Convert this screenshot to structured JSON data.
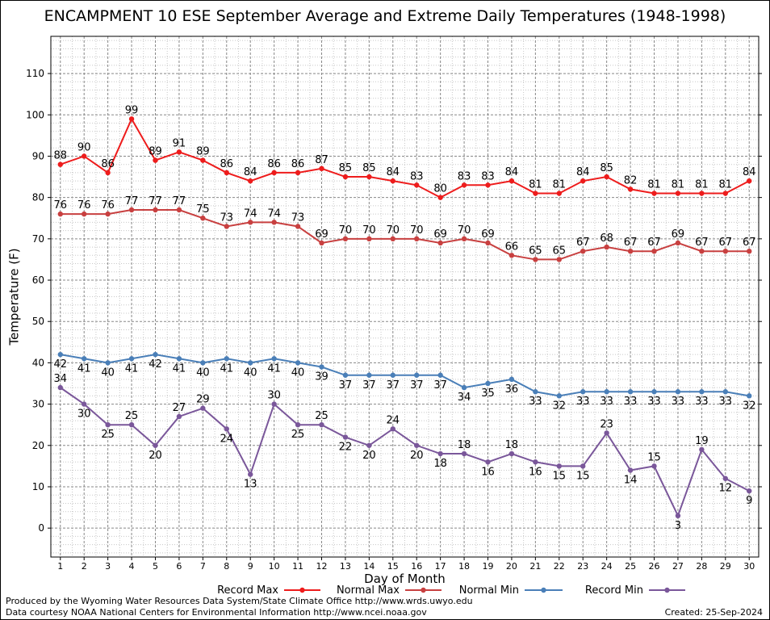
{
  "page": {
    "footer_left_1": "Produced by the Wyoming Water Resources Data System/State Climate Office http://www.wrds.uwyo.edu",
    "footer_left_2": "Data courtesy NOAA National Centers for Environmental Information http://www.ncei.noaa.gov",
    "created": "Created:  25-Sep-2024"
  },
  "chart_data": {
    "type": "line",
    "title": "ENCAMPMENT 10 ESE September Average and Extreme Daily Temperatures (1948-1998)",
    "xlabel": "Day of Month",
    "ylabel": "Temperature (F)",
    "xlim": [
      0.6,
      30.4
    ],
    "ylim": [
      -7,
      119
    ],
    "yticks": [
      0,
      10,
      20,
      30,
      40,
      50,
      60,
      70,
      80,
      90,
      100,
      110
    ],
    "x": [
      1,
      2,
      3,
      4,
      5,
      6,
      7,
      8,
      9,
      10,
      11,
      12,
      13,
      14,
      15,
      16,
      17,
      18,
      19,
      20,
      21,
      22,
      23,
      24,
      25,
      26,
      27,
      28,
      29,
      30
    ],
    "grid": true,
    "legend_position": "bottom",
    "series": [
      {
        "name": "Record Max",
        "color": "#ee1c1c",
        "label_position": "above",
        "values": [
          88,
          90,
          86,
          99,
          89,
          91,
          89,
          86,
          84,
          86,
          86,
          87,
          85,
          85,
          84,
          83,
          80,
          83,
          83,
          84,
          81,
          81,
          84,
          85,
          82,
          81,
          81,
          81,
          81,
          84
        ]
      },
      {
        "name": "Normal Max",
        "color": "#c84040",
        "label_position": "above",
        "values": [
          76,
          76,
          76,
          77,
          77,
          77,
          75,
          73,
          74,
          74,
          73,
          69,
          70,
          70,
          70,
          70,
          69,
          70,
          69,
          66,
          65,
          65,
          67,
          68,
          67,
          67,
          69,
          67,
          67,
          67
        ]
      },
      {
        "name": "Normal Min",
        "color": "#4a7fb8",
        "label_position": "below",
        "values": [
          42,
          41,
          40,
          41,
          42,
          41,
          40,
          41,
          40,
          41,
          40,
          39,
          37,
          37,
          37,
          37,
          37,
          34,
          35,
          36,
          33,
          32,
          33,
          33,
          33,
          33,
          33,
          33,
          33,
          32
        ]
      },
      {
        "name": "Record Min",
        "color": "#7a579a",
        "label_position": "mixed",
        "values": [
          34,
          30,
          25,
          25,
          20,
          27,
          29,
          24,
          13,
          30,
          25,
          25,
          22,
          20,
          24,
          20,
          18,
          18,
          16,
          18,
          16,
          15,
          15,
          23,
          14,
          15,
          3,
          19,
          12,
          9
        ]
      }
    ]
  }
}
